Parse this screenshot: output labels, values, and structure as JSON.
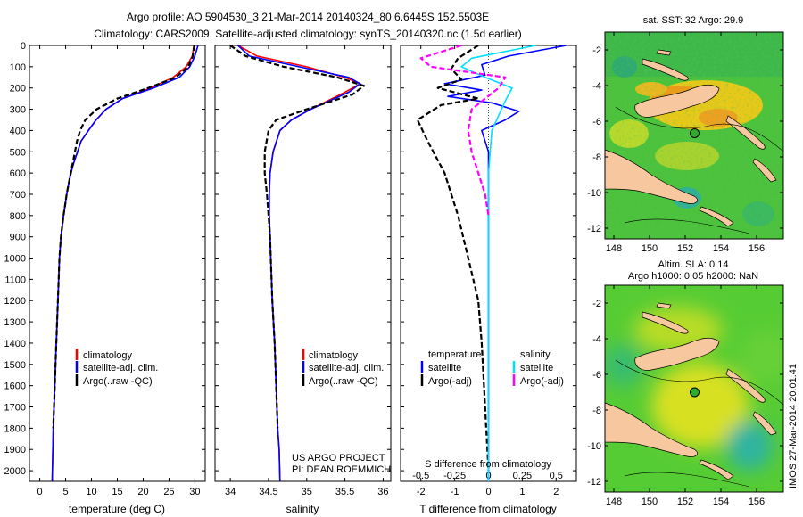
{
  "header": {
    "line1": "Argo profile: AO 5904530_3 21-Mar-2014 20140324_80 6.6445S 152.5503E",
    "line2": "Climatology: CARS2009. Satellite-adjusted climatology: synTS_20140320.nc (1.5d earlier)"
  },
  "colors": {
    "clim": "#ff0000",
    "sat": "#0000ff",
    "argo": "#000000",
    "sal_sat": "#00e0ff",
    "sal_argo": "#ff00ff",
    "land": "#f7c8a0"
  },
  "chart_data": [
    {
      "id": "temp",
      "type": "line",
      "xlabel": "temperature (deg C)",
      "ylabel": "",
      "xlim": [
        -2,
        32
      ],
      "ylim": [
        2050,
        0
      ],
      "xticks": [
        0,
        5,
        10,
        15,
        20,
        25,
        30
      ],
      "xtick_labels": [
        "0",
        "5",
        "10",
        "15",
        "20",
        "25",
        "30"
      ],
      "yticks": [
        0,
        100,
        200,
        300,
        400,
        500,
        600,
        700,
        800,
        900,
        1000,
        1100,
        1200,
        1300,
        1400,
        1500,
        1600,
        1700,
        1800,
        1900,
        2000
      ],
      "ytick_labels": [
        "0",
        "100",
        "200",
        "300",
        "400",
        "500",
        "600",
        "700",
        "800",
        "900",
        "1000",
        "1100",
        "1200",
        "1300",
        "1400",
        "1500",
        "1600",
        "1700",
        "1800",
        "1900",
        "2000"
      ],
      "legend": {
        "position": "lower-center",
        "entries": [
          "climatology",
          "satellite-adj. clim.",
          "Argo(..raw -QC)"
        ]
      },
      "series": [
        {
          "name": "climatology",
          "color": "#ff0000",
          "dash": "solid",
          "x": [
            29.8,
            29.5,
            28.3,
            25.8,
            21.5,
            16.0,
            12.8,
            10.9,
            9.4,
            8.0,
            7.3,
            6.6,
            6.0,
            5.6,
            5.2,
            4.9,
            4.6,
            4.1,
            3.8,
            3.5,
            3.2,
            2.9,
            2.6,
            2.4
          ],
          "y": [
            0,
            50,
            100,
            150,
            200,
            250,
            300,
            350,
            400,
            450,
            500,
            550,
            600,
            650,
            700,
            750,
            800,
            900,
            1000,
            1200,
            1400,
            1600,
            1800,
            2050
          ]
        },
        {
          "name": "satellite-adj. clim.",
          "color": "#0000ff",
          "dash": "solid",
          "x": [
            30.6,
            30.0,
            29.0,
            27.0,
            22.0,
            16.0,
            12.8,
            10.9,
            9.4,
            8.0,
            7.3,
            6.6,
            6.0,
            5.6,
            5.2,
            4.9,
            4.6,
            4.1,
            3.8,
            3.5,
            3.2,
            2.9,
            2.6,
            2.4
          ],
          "y": [
            0,
            50,
            100,
            150,
            200,
            250,
            300,
            350,
            400,
            450,
            500,
            550,
            600,
            650,
            700,
            750,
            800,
            900,
            1000,
            1200,
            1400,
            1600,
            1800,
            2050
          ]
        },
        {
          "name": "Argo(..raw -QC)",
          "color": "#000000",
          "dash": "dash",
          "x": [
            29.9,
            29.6,
            28.7,
            26.3,
            21.0,
            15.0,
            11.0,
            8.8,
            7.8,
            7.2,
            6.8,
            6.4,
            6.0,
            5.6,
            5.2,
            4.9,
            4.6,
            4.1,
            3.8,
            3.5,
            3.2,
            2.9,
            2.6
          ],
          "y": [
            0,
            50,
            100,
            150,
            200,
            250,
            300,
            350,
            400,
            450,
            500,
            550,
            600,
            650,
            700,
            750,
            800,
            900,
            1000,
            1200,
            1400,
            1600,
            1800
          ]
        }
      ]
    },
    {
      "id": "sal",
      "type": "line",
      "xlabel": "salinity",
      "ylabel": "",
      "xlim": [
        33.8,
        36.1
      ],
      "ylim": [
        2050,
        0
      ],
      "xticks": [
        34,
        34.5,
        35,
        35.5,
        36
      ],
      "xtick_labels": [
        "34",
        "34.5",
        "35",
        "35.5",
        "36"
      ],
      "legend": {
        "position": "lower-right",
        "entries": [
          "climatology",
          "satellite-adj. clim.",
          "Argo(..raw -QC)"
        ]
      },
      "annotation": [
        "US ARGO PROJECT",
        "PI: DEAN ROEMMICH"
      ],
      "series": [
        {
          "name": "climatology",
          "color": "#ff0000",
          "dash": "solid",
          "x": [
            34.1,
            34.35,
            35.0,
            35.5,
            35.7,
            35.5,
            35.05,
            34.8,
            34.65,
            34.56,
            34.52,
            34.51,
            34.51,
            34.52,
            34.53,
            34.55,
            34.58,
            34.6,
            34.62,
            34.64,
            34.65
          ],
          "y": [
            0,
            50,
            100,
            150,
            180,
            220,
            300,
            350,
            400,
            500,
            600,
            700,
            800,
            900,
            1000,
            1200,
            1400,
            1600,
            1800,
            1900,
            2050
          ]
        },
        {
          "name": "satellite-adj. clim.",
          "color": "#0000ff",
          "dash": "solid",
          "x": [
            34.1,
            34.25,
            34.9,
            35.55,
            35.7,
            35.55,
            35.05,
            34.8,
            34.65,
            34.56,
            34.52,
            34.51,
            34.51,
            34.52,
            34.53,
            34.55,
            34.58,
            34.6,
            34.62,
            34.64,
            34.65
          ],
          "y": [
            0,
            50,
            100,
            150,
            180,
            220,
            300,
            350,
            400,
            500,
            600,
            700,
            800,
            900,
            1000,
            1200,
            1400,
            1600,
            1800,
            1900,
            2050
          ]
        },
        {
          "name": "Argo(..raw -QC)",
          "color": "#000000",
          "dash": "dash",
          "x": [
            34.0,
            34.2,
            34.7,
            35.4,
            35.75,
            35.6,
            35.0,
            34.6,
            34.5,
            34.45,
            34.45,
            34.48,
            34.5,
            34.52,
            34.53,
            34.55,
            34.58,
            34.6,
            34.62
          ],
          "y": [
            0,
            50,
            100,
            150,
            190,
            230,
            300,
            350,
            400,
            500,
            600,
            700,
            800,
            900,
            1000,
            1200,
            1400,
            1600,
            1800
          ]
        }
      ]
    },
    {
      "id": "diff",
      "type": "line",
      "xlabel": "T difference from climatology",
      "xlabel_top": "S difference from climatology",
      "xlim": [
        -2.6,
        2.6
      ],
      "ylim": [
        2050,
        0
      ],
      "xticks": [
        -2,
        -1,
        0,
        1,
        2
      ],
      "xtick_labels": [
        "-2",
        "-1",
        "0",
        "1",
        "2"
      ],
      "xticks_top": [
        -0.5,
        -0.25,
        0,
        0.25,
        0.5
      ],
      "xtick_labels_top": [
        "-0.5",
        "-0.25",
        "0",
        "0.25",
        "0.5"
      ],
      "legend": {
        "position": "lower-center",
        "entries": [
          "temperature",
          "satellite",
          "Argo(-adj)",
          "salinity",
          "satellite",
          "Argo(-adj)"
        ]
      },
      "series": [
        {
          "name": "temperature satellite",
          "color": "#0000ff",
          "dash": "solid",
          "x": [
            2.3,
            0.6,
            -0.2,
            -0.1,
            -1.3,
            -0.2,
            -1.2,
            0.1,
            0.9,
            0.5,
            -0.2,
            0.0,
            0.0,
            0.0,
            0.0,
            0.0,
            0.0
          ],
          "y": [
            0,
            50,
            90,
            140,
            180,
            210,
            240,
            270,
            310,
            350,
            400,
            500,
            700,
            1000,
            1400,
            1700,
            2050
          ]
        },
        {
          "name": "temperature Argo(-adj)",
          "color": "#000000",
          "dash": "dash",
          "x": [
            -0.3,
            -0.9,
            -1.1,
            -0.8,
            -1.5,
            -0.3,
            -1.4,
            -2.1,
            -1.8,
            -1.3,
            -0.9,
            -0.6,
            -0.3,
            -0.2,
            -0.1,
            0.0
          ],
          "y": [
            0,
            60,
            110,
            160,
            200,
            250,
            280,
            350,
            450,
            600,
            800,
            1000,
            1200,
            1400,
            1700,
            2000
          ]
        },
        {
          "name": "salinity satellite",
          "color": "#00e0ff",
          "dash": "solid",
          "x": [
            1.4,
            -0.5,
            -0.8,
            -0.1,
            0.7,
            0.5,
            0.1,
            0.0,
            0.0,
            0.0,
            0.0,
            0.0,
            0.0
          ],
          "y": [
            0,
            60,
            100,
            150,
            200,
            260,
            400,
            600,
            800,
            1000,
            1400,
            1700,
            2050
          ]
        },
        {
          "name": "salinity Argo(-adj)",
          "color": "#ff00ff",
          "dash": "dash",
          "x": [
            -0.8,
            -2.0,
            -1.7,
            0.5,
            0.3,
            -0.5,
            -0.6,
            -0.5,
            -0.3,
            -0.1,
            0.0
          ],
          "y": [
            0,
            60,
            100,
            150,
            200,
            300,
            400,
            500,
            600,
            700,
            800
          ]
        }
      ]
    },
    {
      "id": "sst_map",
      "type": "heatmap",
      "title": "sat. SST: 32 Argo: 29.9",
      "xlim": [
        147.5,
        157.5
      ],
      "ylim": [
        -12.6,
        -1.0
      ],
      "xticks": [
        148,
        150,
        152,
        154,
        156
      ],
      "xtick_labels": [
        "148",
        "150",
        "152",
        "154",
        "156"
      ],
      "yticks": [
        -2,
        -4,
        -6,
        -8,
        -10,
        -12
      ],
      "ytick_labels": [
        "-2",
        "-4",
        "-6",
        "-8",
        "-10",
        "-12"
      ],
      "float_position": {
        "lon": 152.55,
        "lat": -6.64
      }
    },
    {
      "id": "sla_map",
      "type": "heatmap",
      "title": "Altim. SLA: 0.14",
      "subtitle": "Argo h1000: 0.05 h2000: NaN",
      "xlim": [
        147.5,
        157.5
      ],
      "ylim": [
        -12.6,
        -1.0
      ],
      "xticks": [
        148,
        150,
        152,
        154,
        156
      ],
      "xtick_labels": [
        "148",
        "150",
        "152",
        "154",
        "156"
      ],
      "yticks": [
        -2,
        -4,
        -6,
        -8,
        -10,
        -12
      ],
      "ytick_labels": [
        "-2",
        "-4",
        "-6",
        "-8",
        "-10",
        "-12"
      ],
      "float_position": {
        "lon": 152.55,
        "lat": -6.64
      }
    }
  ],
  "footer": {
    "stamp": "IMOS 27-Mar-2014 20:01:41"
  }
}
